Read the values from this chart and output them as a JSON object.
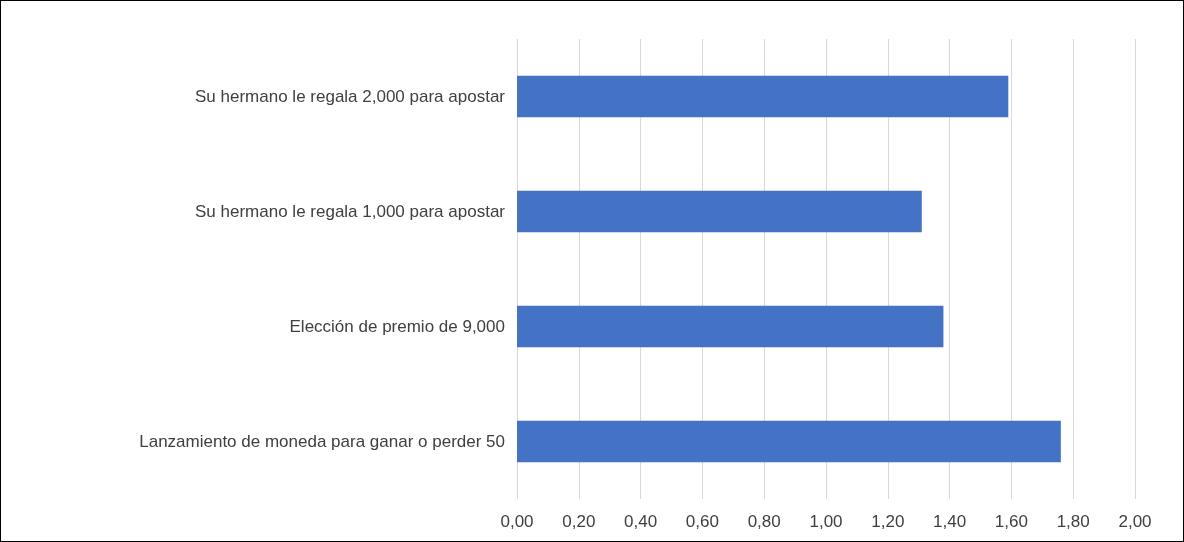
{
  "chart_data": {
    "type": "bar",
    "orientation": "horizontal",
    "categories": [
      "Su hermano le regala 2,000 para apostar",
      "Su hermano le regala 1,000 para apostar",
      "Elección de premio de 9,000",
      "Lanzamiento de moneda para ganar o perder 50"
    ],
    "values": [
      1.59,
      1.31,
      1.38,
      1.76
    ],
    "color": "#4472c4",
    "xlim": [
      0,
      2
    ],
    "xticks": [
      {
        "value": 0,
        "label": "0,00"
      },
      {
        "value": 0.2,
        "label": "0,20"
      },
      {
        "value": 0.4,
        "label": "0,40"
      },
      {
        "value": 0.6,
        "label": "0,60"
      },
      {
        "value": 0.8,
        "label": "0,80"
      },
      {
        "value": 1,
        "label": "1,00"
      },
      {
        "value": 1.2,
        "label": "1,20"
      },
      {
        "value": 1.4,
        "label": "1,40"
      },
      {
        "value": 1.6,
        "label": "1,60"
      },
      {
        "value": 1.8,
        "label": "1,80"
      },
      {
        "value": 2,
        "label": "2,00"
      }
    ],
    "grid": "x"
  }
}
